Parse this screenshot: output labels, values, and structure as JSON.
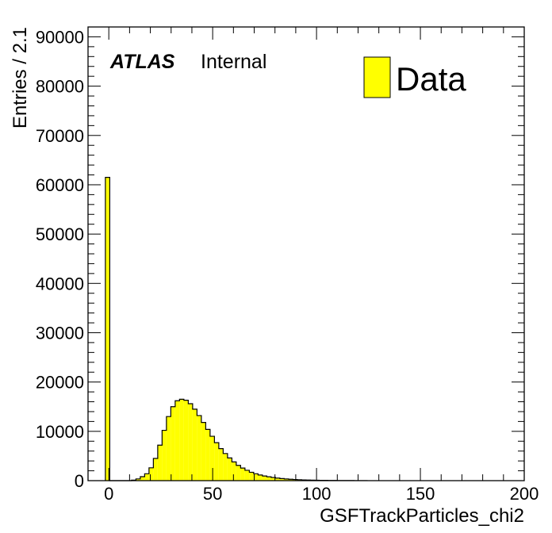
{
  "labels": {
    "atlas": "ATLAS",
    "internal": "Internal"
  },
  "legend": {
    "entry": "Data"
  },
  "colors": {
    "fill": "#ffff00",
    "line": "#000000"
  },
  "chart_data": {
    "type": "bar",
    "style": "histogram",
    "xlabel": "GSFTrackParticles_chi2",
    "ylabel": "Entries / 2.1",
    "xlim": [
      -10,
      200
    ],
    "ylim": [
      0,
      92000
    ],
    "bin_width": 2.1,
    "x_ticks": [
      "0",
      "50",
      "100",
      "150",
      "200"
    ],
    "y_ticks": [
      "0",
      "10000",
      "20000",
      "30000",
      "40000",
      "50000",
      "60000",
      "70000",
      "80000",
      "90000"
    ],
    "grid": false,
    "legend_position": "top-right",
    "series": [
      {
        "name": "Data",
        "bin_low_edges": [
          -1.65,
          0.45,
          2.55,
          4.65,
          6.75,
          8.85,
          10.95,
          13.05,
          15.15,
          17.25,
          19.35,
          21.45,
          23.55,
          25.65,
          27.75,
          29.85,
          31.95,
          34.05,
          36.15,
          38.25,
          40.35,
          42.45,
          44.55,
          46.65,
          48.75,
          50.85,
          52.95,
          55.05,
          57.15,
          59.25,
          61.35,
          63.45,
          65.55,
          67.65,
          69.75,
          71.85,
          73.95,
          76.05,
          78.15,
          80.25,
          82.35,
          84.45,
          86.55,
          88.65,
          90.75,
          92.85,
          94.95,
          97.05,
          99.15,
          101.25,
          103.35,
          105.45,
          107.55,
          109.65,
          111.75,
          113.85,
          115.95,
          118.05,
          120.15,
          122.25
        ],
        "values": [
          61500,
          0,
          0,
          0,
          0,
          0,
          100,
          350,
          800,
          1400,
          2600,
          4500,
          7200,
          10200,
          13000,
          15000,
          16200,
          16500,
          16300,
          15600,
          14500,
          13200,
          11800,
          10400,
          9000,
          7700,
          6500,
          5500,
          4600,
          3800,
          3100,
          2550,
          2100,
          1700,
          1400,
          1150,
          950,
          780,
          640,
          520,
          420,
          340,
          280,
          230,
          190,
          150,
          120,
          100,
          80,
          65,
          55,
          45,
          38,
          30,
          25,
          20,
          16,
          13,
          10,
          8
        ]
      }
    ]
  }
}
